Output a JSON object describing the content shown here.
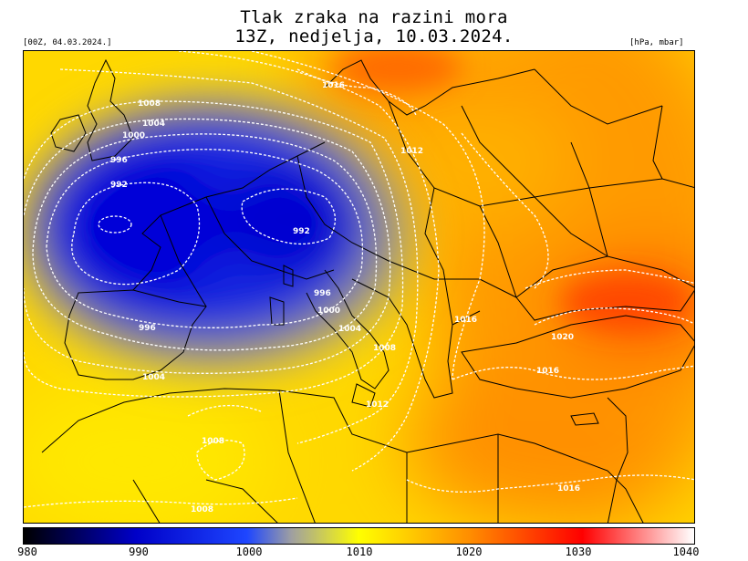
{
  "header": {
    "title_line1": "Tlak zraka na razini mora",
    "title_line2": "13Z, nedjelja, 10.03.2024.",
    "run_label": "[00Z, 04.03.2024.]",
    "unit_label": "[hPa, mbar]"
  },
  "isobar_labels": [
    "1008",
    "1004",
    "1000",
    "996",
    "992",
    "992",
    "1016",
    "1012",
    "996",
    "1000",
    "1004",
    "1008",
    "1016",
    "1020",
    "1016",
    "996",
    "1004",
    "1012",
    "1008",
    "1016",
    "1008"
  ],
  "colorbar": {
    "ticks": [
      "980",
      "990",
      "1000",
      "1010",
      "1020",
      "1030",
      "1040"
    ],
    "colors": {
      "c980": "#000000",
      "c990": "#0000c8",
      "c1000": "#1e46ff",
      "c1005": "#a0a0a0",
      "c1010": "#ffff00",
      "c1020": "#ff8c00",
      "c1030": "#ff0000",
      "c1040": "#ffffff"
    }
  },
  "legend": {
    "low_center": "blue",
    "high_east": "orange-red"
  }
}
